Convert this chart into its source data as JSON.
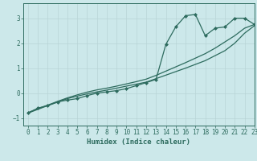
{
  "xlabel": "Humidex (Indice chaleur)",
  "bg_color": "#cce8ea",
  "line_color": "#2d6b5e",
  "xlim": [
    -0.5,
    23
  ],
  "ylim": [
    -1.3,
    3.6
  ],
  "yticks": [
    -1,
    0,
    1,
    2,
    3
  ],
  "xticks": [
    0,
    1,
    2,
    3,
    4,
    5,
    6,
    7,
    8,
    9,
    10,
    11,
    12,
    13,
    14,
    15,
    16,
    17,
    18,
    19,
    20,
    21,
    22,
    23
  ],
  "series": [
    {
      "x": [
        0,
        1,
        2,
        3,
        4,
        5,
        6,
        7,
        8,
        9,
        10,
        11,
        12,
        13,
        14,
        15,
        16,
        17,
        18,
        19,
        20,
        21,
        22,
        23
      ],
      "y": [
        -0.8,
        -0.6,
        -0.5,
        -0.35,
        -0.28,
        -0.22,
        -0.1,
        0.0,
        0.05,
        0.1,
        0.18,
        0.3,
        0.42,
        0.55,
        1.95,
        2.65,
        3.1,
        3.15,
        2.3,
        2.6,
        2.65,
        3.0,
        3.0,
        2.75
      ],
      "marker": "D",
      "markersize": 2.0,
      "linewidth": 0.9
    },
    {
      "x": [
        0,
        1,
        2,
        3,
        4,
        5,
        6,
        7,
        8,
        9,
        10,
        11,
        12,
        13,
        14,
        15,
        16,
        17,
        18,
        19,
        20,
        21,
        22,
        23
      ],
      "y": [
        -0.8,
        -0.65,
        -0.5,
        -0.36,
        -0.22,
        -0.12,
        -0.03,
        0.05,
        0.12,
        0.2,
        0.28,
        0.36,
        0.44,
        0.58,
        0.72,
        0.86,
        1.0,
        1.15,
        1.3,
        1.5,
        1.7,
        2.0,
        2.4,
        2.7
      ],
      "marker": null,
      "markersize": 0,
      "linewidth": 0.9
    },
    {
      "x": [
        0,
        1,
        2,
        3,
        4,
        5,
        6,
        7,
        8,
        9,
        10,
        11,
        12,
        13,
        14,
        15,
        16,
        17,
        18,
        19,
        20,
        21,
        22,
        23
      ],
      "y": [
        -0.78,
        -0.62,
        -0.48,
        -0.33,
        -0.19,
        -0.07,
        0.04,
        0.13,
        0.2,
        0.28,
        0.37,
        0.46,
        0.56,
        0.71,
        0.88,
        1.05,
        1.22,
        1.4,
        1.58,
        1.8,
        2.05,
        2.3,
        2.6,
        2.75
      ],
      "marker": null,
      "markersize": 0,
      "linewidth": 0.9
    }
  ],
  "grid_color": "#b8d4d6",
  "grid_linewidth": 0.5,
  "tick_fontsize": 5.5,
  "label_fontsize": 6.5
}
